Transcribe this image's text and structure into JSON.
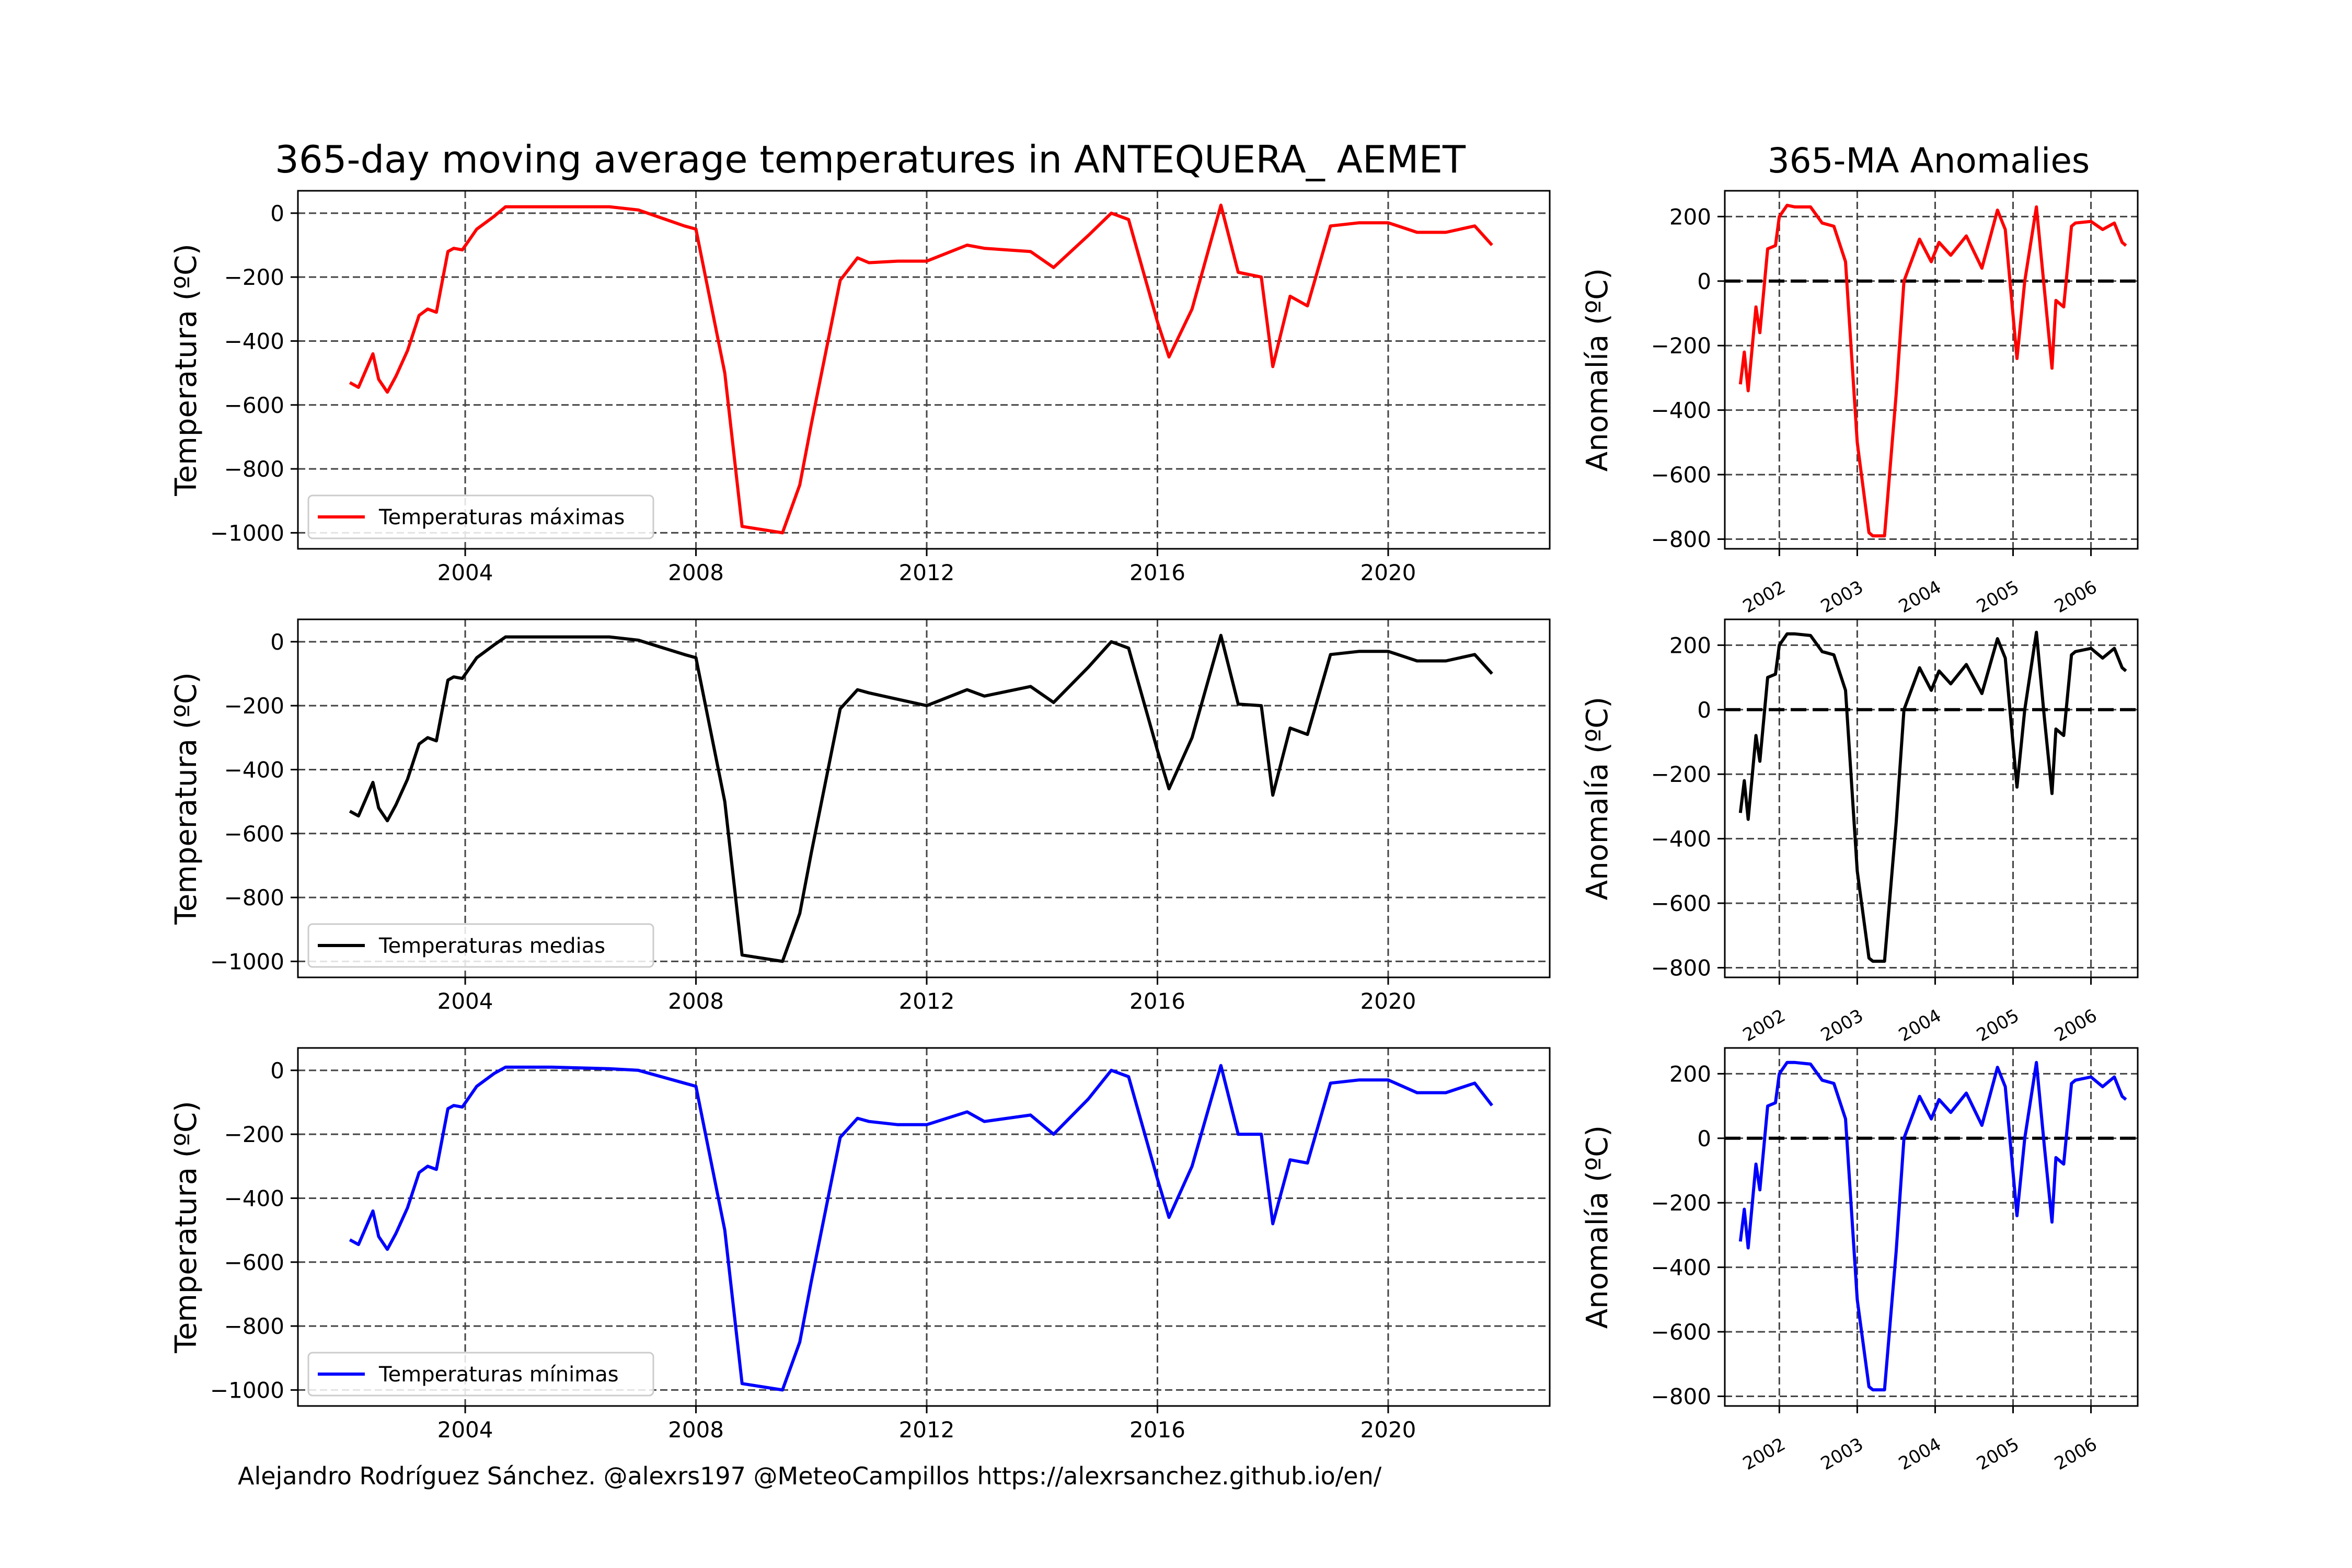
{
  "main_title": "365-day moving average temperatures in ANTEQUERA_ AEMET",
  "side_title": "365-MA Anomalies",
  "credit": "Alejandro Rodríguez Sánchez. @alexrs197 @MeteoCampillos   https://alexrsanchez.github.io/en/",
  "chart_data": [
    {
      "type": "line",
      "title": "365-day moving average temperatures in ANTEQUERA_ AEMET",
      "ylabel": "Temperatura (ºC)",
      "xlim": [
        2001.1,
        2022.8
      ],
      "ylim": [
        -1050,
        70
      ],
      "xticks": [
        2004,
        2008,
        2012,
        2016,
        2020
      ],
      "yticks": [
        0,
        -200,
        -400,
        -600,
        -800,
        -1000
      ],
      "grid": true,
      "legend_position": "lower-left",
      "series": [
        {
          "name": "Temperaturas máximas",
          "color": "#ff0000",
          "x": [
            2002.0,
            2002.15,
            2002.4,
            2002.5,
            2002.65,
            2002.8,
            2003.0,
            2003.2,
            2003.35,
            2003.5,
            2003.7,
            2003.8,
            2003.95,
            2004.2,
            2004.5,
            2004.7,
            2005.5,
            2006.5,
            2007.0,
            2007.8,
            2008.0,
            2008.5,
            2008.8,
            2009.5,
            2009.8,
            2010.0,
            2010.5,
            2010.8,
            2011.0,
            2011.5,
            2012.0,
            2012.7,
            2013.0,
            2013.8,
            2014.2,
            2014.8,
            2015.2,
            2015.5,
            2016.0,
            2016.2,
            2016.6,
            2017.1,
            2017.4,
            2017.8,
            2018.0,
            2018.3,
            2018.6,
            2019.0,
            2019.5,
            2020.0,
            2020.5,
            2021.0,
            2021.5,
            2021.8
          ],
          "y": [
            -530,
            -545,
            -440,
            -520,
            -560,
            -510,
            -430,
            -320,
            -300,
            -310,
            -120,
            -110,
            -115,
            -50,
            -10,
            20,
            20,
            20,
            10,
            -40,
            -50,
            -500,
            -980,
            -1000,
            -850,
            -660,
            -210,
            -140,
            -155,
            -150,
            -150,
            -100,
            -110,
            -120,
            -170,
            -70,
            0,
            -20,
            -340,
            -450,
            -300,
            25,
            -185,
            -200,
            -480,
            -260,
            -290,
            -40,
            -30,
            -30,
            -60,
            -60,
            -40,
            -100
          ]
        }
      ]
    },
    {
      "type": "line",
      "ylabel": "Temperatura (ºC)",
      "xlim": [
        2001.1,
        2022.8
      ],
      "ylim": [
        -1050,
        70
      ],
      "xticks": [
        2004,
        2008,
        2012,
        2016,
        2020
      ],
      "yticks": [
        0,
        -200,
        -400,
        -600,
        -800,
        -1000
      ],
      "grid": true,
      "legend_position": "lower-left",
      "series": [
        {
          "name": "Temperaturas medias",
          "color": "#000000",
          "x": [
            2002.0,
            2002.15,
            2002.4,
            2002.5,
            2002.65,
            2002.8,
            2003.0,
            2003.2,
            2003.35,
            2003.5,
            2003.7,
            2003.8,
            2003.95,
            2004.2,
            2004.5,
            2004.7,
            2005.5,
            2006.5,
            2007.0,
            2007.8,
            2008.0,
            2008.5,
            2008.8,
            2009.5,
            2009.8,
            2010.0,
            2010.5,
            2010.8,
            2011.0,
            2011.5,
            2012.0,
            2012.7,
            2013.0,
            2013.8,
            2014.2,
            2014.8,
            2015.2,
            2015.5,
            2016.0,
            2016.2,
            2016.6,
            2017.1,
            2017.4,
            2017.8,
            2018.0,
            2018.3,
            2018.6,
            2019.0,
            2019.5,
            2020.0,
            2020.5,
            2021.0,
            2021.5,
            2021.8
          ],
          "y": [
            -530,
            -545,
            -440,
            -520,
            -560,
            -510,
            -430,
            -320,
            -300,
            -310,
            -120,
            -110,
            -115,
            -50,
            -10,
            15,
            15,
            15,
            5,
            -40,
            -50,
            -500,
            -980,
            -1000,
            -850,
            -660,
            -210,
            -150,
            -160,
            -180,
            -200,
            -150,
            -170,
            -140,
            -190,
            -80,
            0,
            -20,
            -340,
            -460,
            -300,
            20,
            -195,
            -200,
            -480,
            -270,
            -290,
            -40,
            -30,
            -30,
            -60,
            -60,
            -40,
            -100
          ]
        }
      ]
    },
    {
      "type": "line",
      "ylabel": "Temperatura (ºC)",
      "xlim": [
        2001.1,
        2022.8
      ],
      "ylim": [
        -1050,
        70
      ],
      "xticks": [
        2004,
        2008,
        2012,
        2016,
        2020
      ],
      "yticks": [
        0,
        -200,
        -400,
        -600,
        -800,
        -1000
      ],
      "grid": true,
      "legend_position": "lower-left",
      "series": [
        {
          "name": "Temperaturas mínimas",
          "color": "#0000ff",
          "x": [
            2002.0,
            2002.15,
            2002.4,
            2002.5,
            2002.65,
            2002.8,
            2003.0,
            2003.2,
            2003.35,
            2003.5,
            2003.7,
            2003.8,
            2003.95,
            2004.2,
            2004.5,
            2004.7,
            2005.5,
            2006.5,
            2007.0,
            2007.8,
            2008.0,
            2008.5,
            2008.8,
            2009.5,
            2009.8,
            2010.0,
            2010.5,
            2010.8,
            2011.0,
            2011.5,
            2012.0,
            2012.7,
            2013.0,
            2013.8,
            2014.2,
            2014.8,
            2015.2,
            2015.5,
            2016.0,
            2016.2,
            2016.6,
            2017.1,
            2017.4,
            2017.8,
            2018.0,
            2018.3,
            2018.6,
            2019.0,
            2019.5,
            2020.0,
            2020.5,
            2021.0,
            2021.5,
            2021.8
          ],
          "y": [
            -530,
            -545,
            -440,
            -520,
            -560,
            -510,
            -430,
            -320,
            -300,
            -310,
            -120,
            -110,
            -115,
            -50,
            -10,
            10,
            10,
            5,
            0,
            -40,
            -50,
            -500,
            -980,
            -1000,
            -850,
            -660,
            -210,
            -150,
            -160,
            -170,
            -170,
            -130,
            -160,
            -140,
            -200,
            -90,
            0,
            -20,
            -340,
            -460,
            -300,
            15,
            -200,
            -200,
            -480,
            -280,
            -290,
            -40,
            -30,
            -30,
            -70,
            -70,
            -40,
            -110
          ]
        }
      ]
    },
    {
      "type": "line",
      "title": "365-MA Anomalies",
      "ylabel": "Anomalía (ºC)",
      "xlim": [
        2001.3,
        2006.6
      ],
      "ylim": [
        -830,
        280
      ],
      "xticks": [
        2002,
        2003,
        2004,
        2005,
        2006
      ],
      "yticks": [
        200,
        0,
        -200,
        -400,
        -600,
        -800
      ],
      "grid": true,
      "reference_line": 0,
      "series": [
        {
          "name": "Temperaturas máximas",
          "color": "#ff0000",
          "x": [
            2001.5,
            2001.55,
            2001.6,
            2001.7,
            2001.75,
            2001.85,
            2001.95,
            2002.0,
            2002.1,
            2002.2,
            2002.4,
            2002.55,
            2002.7,
            2002.85,
            2003.0,
            2003.15,
            2003.2,
            2003.35,
            2003.5,
            2003.6,
            2003.8,
            2003.95,
            2004.05,
            2004.2,
            2004.4,
            2004.6,
            2004.8,
            2004.9,
            2005.05,
            2005.15,
            2005.3,
            2005.4,
            2005.5,
            2005.55,
            2005.65,
            2005.75,
            2005.8,
            2006.0,
            2006.15,
            2006.3,
            2006.4,
            2006.45
          ],
          "y": [
            -320,
            -220,
            -340,
            -80,
            -160,
            100,
            110,
            200,
            235,
            230,
            230,
            180,
            170,
            60,
            -500,
            -780,
            -790,
            -790,
            -350,
            0,
            130,
            60,
            120,
            80,
            140,
            40,
            220,
            160,
            -240,
            0,
            230,
            -20,
            -270,
            -60,
            -80,
            170,
            180,
            185,
            160,
            180,
            120,
            110
          ]
        }
      ]
    },
    {
      "type": "line",
      "ylabel": "Anomalía (ºC)",
      "xlim": [
        2001.3,
        2006.6
      ],
      "ylim": [
        -830,
        280
      ],
      "xticks": [
        2002,
        2003,
        2004,
        2005,
        2006
      ],
      "yticks": [
        200,
        0,
        -200,
        -400,
        -600,
        -800
      ],
      "grid": true,
      "reference_line": 0,
      "series": [
        {
          "name": "Temperaturas medias",
          "color": "#000000",
          "x": [
            2001.5,
            2001.55,
            2001.6,
            2001.7,
            2001.75,
            2001.85,
            2001.95,
            2002.0,
            2002.1,
            2002.2,
            2002.4,
            2002.55,
            2002.7,
            2002.85,
            2003.0,
            2003.15,
            2003.2,
            2003.35,
            2003.5,
            2003.6,
            2003.8,
            2003.95,
            2004.05,
            2004.2,
            2004.4,
            2004.6,
            2004.8,
            2004.9,
            2005.05,
            2005.15,
            2005.3,
            2005.4,
            2005.5,
            2005.55,
            2005.65,
            2005.75,
            2005.8,
            2006.0,
            2006.15,
            2006.3,
            2006.4,
            2006.45
          ],
          "y": [
            -320,
            -220,
            -340,
            -80,
            -160,
            100,
            110,
            200,
            235,
            235,
            230,
            180,
            170,
            60,
            -500,
            -770,
            -780,
            -780,
            -350,
            0,
            130,
            60,
            120,
            80,
            140,
            50,
            220,
            160,
            -240,
            0,
            240,
            -20,
            -260,
            -60,
            -80,
            170,
            180,
            190,
            160,
            190,
            130,
            120
          ]
        }
      ]
    },
    {
      "type": "line",
      "ylabel": "Anomalía (ºC)",
      "xlim": [
        2001.3,
        2006.6
      ],
      "ylim": [
        -830,
        280
      ],
      "xticks": [
        2002,
        2003,
        2004,
        2005,
        2006
      ],
      "yticks": [
        200,
        0,
        -200,
        -400,
        -600,
        -800
      ],
      "grid": true,
      "reference_line": 0,
      "series": [
        {
          "name": "Temperaturas mínimas",
          "color": "#0000ff",
          "x": [
            2001.5,
            2001.55,
            2001.6,
            2001.7,
            2001.75,
            2001.85,
            2001.95,
            2002.0,
            2002.1,
            2002.2,
            2002.4,
            2002.55,
            2002.7,
            2002.85,
            2003.0,
            2003.15,
            2003.2,
            2003.35,
            2003.5,
            2003.6,
            2003.8,
            2003.95,
            2004.05,
            2004.2,
            2004.4,
            2004.6,
            2004.8,
            2004.9,
            2005.05,
            2005.15,
            2005.3,
            2005.4,
            2005.5,
            2005.55,
            2005.65,
            2005.75,
            2005.8,
            2006.0,
            2006.15,
            2006.3,
            2006.4,
            2006.45
          ],
          "y": [
            -320,
            -220,
            -340,
            -80,
            -160,
            100,
            110,
            200,
            235,
            235,
            230,
            180,
            170,
            60,
            -500,
            -770,
            -780,
            -780,
            -350,
            0,
            130,
            60,
            120,
            80,
            140,
            40,
            220,
            160,
            -240,
            0,
            235,
            -20,
            -260,
            -60,
            -80,
            170,
            180,
            190,
            160,
            190,
            130,
            120
          ]
        }
      ]
    }
  ]
}
